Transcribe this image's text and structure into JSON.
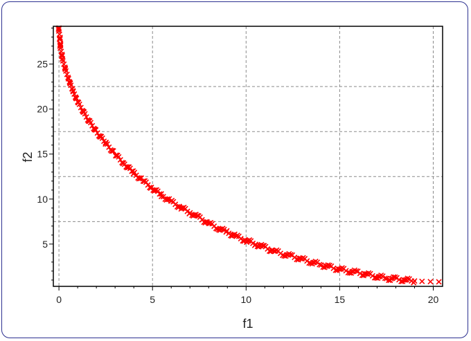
{
  "chart_data": {
    "type": "scatter",
    "xlabel": "f1",
    "ylabel": "f2",
    "xlim": [
      -0.3,
      20.5
    ],
    "ylim": [
      0.3,
      29.2
    ],
    "grid": true,
    "x_major_ticks": [
      0,
      5,
      10,
      15,
      20
    ],
    "y_major_ticks": [
      5,
      10,
      15,
      20,
      25
    ],
    "x_grid_lines": [
      0,
      5,
      10,
      15,
      20
    ],
    "y_grid_lines": [
      7.5,
      12.5,
      17.5,
      22.5
    ],
    "x_tick_labels": [
      "0",
      "5",
      "10",
      "15",
      "20"
    ],
    "y_tick_labels": [
      "5",
      "10",
      "15",
      "20",
      "25"
    ],
    "marker": "x",
    "marker_color": "#ff0000",
    "series": [
      {
        "points": [
          [
            0,
            29
          ],
          [
            0.05,
            27.5
          ],
          [
            0.1,
            26.6
          ],
          [
            0.2,
            25.5
          ],
          [
            0.3,
            24.7
          ],
          [
            0.5,
            23.4
          ],
          [
            0.75,
            22
          ],
          [
            1,
            20.8
          ],
          [
            1.5,
            19
          ],
          [
            2,
            17.5
          ],
          [
            2.5,
            16.2
          ],
          [
            3,
            15
          ],
          [
            3.5,
            13.9
          ],
          [
            4,
            12.9
          ],
          [
            4.5,
            12
          ],
          [
            5,
            11.2
          ],
          [
            5.5,
            10.4
          ],
          [
            6,
            9.7
          ],
          [
            6.5,
            9.1
          ],
          [
            7,
            8.5
          ],
          [
            7.5,
            7.9
          ],
          [
            8,
            7.3
          ],
          [
            8.5,
            6.8
          ],
          [
            9,
            6.3
          ],
          [
            9.5,
            5.8
          ],
          [
            10,
            5.4
          ],
          [
            10.5,
            5
          ],
          [
            11,
            4.6
          ],
          [
            11.5,
            4.2
          ],
          [
            12,
            3.9
          ],
          [
            12.5,
            3.6
          ],
          [
            13,
            3.3
          ],
          [
            13.5,
            3
          ],
          [
            14,
            2.7
          ],
          [
            14.5,
            2.4
          ],
          [
            15,
            2.2
          ],
          [
            15.5,
            2
          ],
          [
            16,
            1.8
          ],
          [
            16.5,
            1.6
          ],
          [
            17,
            1.4
          ],
          [
            17.5,
            1.2
          ],
          [
            18,
            1.1
          ],
          [
            18.5,
            1
          ],
          [
            19,
            0.9
          ],
          [
            19.4,
            0.85
          ],
          [
            20.3,
            0.8
          ]
        ]
      }
    ]
  }
}
